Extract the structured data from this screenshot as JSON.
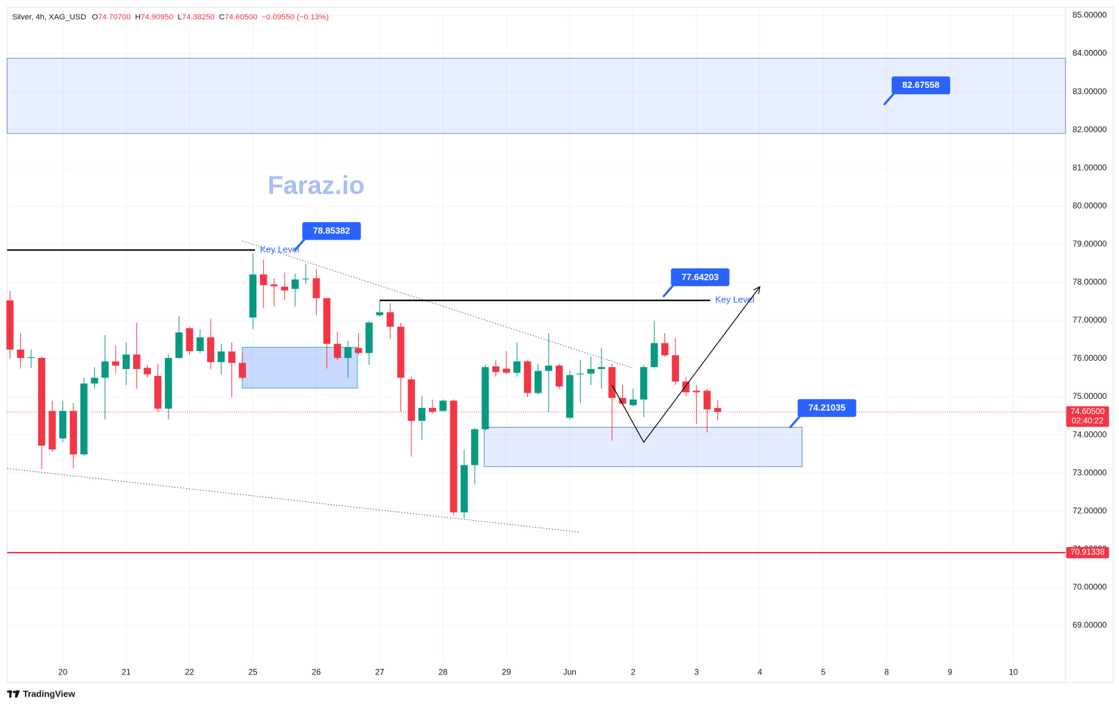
{
  "header": {
    "symbol": "Silver, 4h, XAG_USD",
    "ohlc": [
      {
        "key": "O",
        "value": "74.70700"
      },
      {
        "key": "H",
        "value": "74.90950"
      },
      {
        "key": "L",
        "value": "74.38250"
      },
      {
        "key": "C",
        "value": "74.60500"
      }
    ],
    "change": "−0.09550 (−0.13%)"
  },
  "watermark": "Faraz.io",
  "footer": "TradingView",
  "chart_data": {
    "type": "candlestick",
    "up_color": "#089981",
    "down_color": "#f23645",
    "candles": [
      [
        77.53,
        77.78,
        76.0,
        76.24
      ],
      [
        76.24,
        76.67,
        75.74,
        76.02
      ],
      [
        76.02,
        76.24,
        75.76,
        76.04
      ],
      [
        76.02,
        76.06,
        73.1,
        73.72
      ],
      [
        74.63,
        74.9,
        73.56,
        73.62
      ],
      [
        73.91,
        74.9,
        73.81,
        74.63
      ],
      [
        74.63,
        74.84,
        73.12,
        73.49
      ],
      [
        73.49,
        75.5,
        73.45,
        75.35
      ],
      [
        75.35,
        75.78,
        75.21,
        75.5
      ],
      [
        75.5,
        76.62,
        74.41,
        75.93
      ],
      [
        75.93,
        76.35,
        75.62,
        75.82
      ],
      [
        75.73,
        76.43,
        75.31,
        76.11
      ],
      [
        76.11,
        76.95,
        75.21,
        75.73
      ],
      [
        75.76,
        75.84,
        75.5,
        75.59
      ],
      [
        75.55,
        75.87,
        74.61,
        74.69
      ],
      [
        74.69,
        76.11,
        74.41,
        76.02
      ],
      [
        76.02,
        77.12,
        76.0,
        76.69
      ],
      [
        76.8,
        76.84,
        76.11,
        76.2
      ],
      [
        76.2,
        76.77,
        76.15,
        76.56
      ],
      [
        76.56,
        77.05,
        75.73,
        75.91
      ],
      [
        75.91,
        76.39,
        75.59,
        76.19
      ],
      [
        76.19,
        76.43,
        74.99,
        75.89
      ],
      [
        75.89,
        76.15,
        75.46,
        75.5
      ],
      [
        77.08,
        78.77,
        76.77,
        78.21
      ],
      [
        78.21,
        78.6,
        77.33,
        77.93
      ],
      [
        77.95,
        78.11,
        77.37,
        77.9
      ],
      [
        77.89,
        78.26,
        77.55,
        77.79
      ],
      [
        77.83,
        78.23,
        77.37,
        78.08
      ],
      [
        78.08,
        78.49,
        77.96,
        78.1
      ],
      [
        78.11,
        78.34,
        77.14,
        77.59
      ],
      [
        77.59,
        77.59,
        75.74,
        76.39
      ],
      [
        76.39,
        76.71,
        75.96,
        76.02
      ],
      [
        76.02,
        76.47,
        75.5,
        76.3
      ],
      [
        76.28,
        76.67,
        76.11,
        76.15
      ],
      [
        76.15,
        76.99,
        75.84,
        76.95
      ],
      [
        77.14,
        77.52,
        77.1,
        77.22
      ],
      [
        77.22,
        77.46,
        76.52,
        76.84
      ],
      [
        76.84,
        76.95,
        74.61,
        75.5
      ],
      [
        75.46,
        75.53,
        73.43,
        74.37
      ],
      [
        74.37,
        75.03,
        73.86,
        74.71
      ],
      [
        74.71,
        74.93,
        74.56,
        74.61
      ],
      [
        74.63,
        74.93,
        74.65,
        74.9
      ],
      [
        74.9,
        74.93,
        71.9,
        71.97
      ],
      [
        71.97,
        73.62,
        71.82,
        73.21
      ],
      [
        73.21,
        74.18,
        72.7,
        74.15
      ],
      [
        74.15,
        75.84,
        74.11,
        75.78
      ],
      [
        75.8,
        75.96,
        75.53,
        75.65
      ],
      [
        75.74,
        76.2,
        75.59,
        75.63
      ],
      [
        75.63,
        76.43,
        75.53,
        75.93
      ],
      [
        75.93,
        75.96,
        74.99,
        75.1
      ],
      [
        75.1,
        75.87,
        75.06,
        75.68
      ],
      [
        75.68,
        76.67,
        74.6,
        75.82
      ],
      [
        75.82,
        75.87,
        75.21,
        75.27
      ],
      [
        74.45,
        75.68,
        74.41,
        75.57
      ],
      [
        75.59,
        75.96,
        74.84,
        75.61
      ],
      [
        75.61,
        76.06,
        75.31,
        75.73
      ],
      [
        75.73,
        76.28,
        75.21,
        75.78
      ],
      [
        75.78,
        75.87,
        73.85,
        74.97
      ],
      [
        74.97,
        75.31,
        74.78,
        74.82
      ],
      [
        74.78,
        75.21,
        74.75,
        74.93
      ],
      [
        74.93,
        75.84,
        74.47,
        75.78
      ],
      [
        75.78,
        76.99,
        75.74,
        76.41
      ],
      [
        76.41,
        76.67,
        76.06,
        76.09
      ],
      [
        76.09,
        76.54,
        75.31,
        75.4
      ],
      [
        75.4,
        75.53,
        75.03,
        75.12
      ],
      [
        75.16,
        75.31,
        74.28,
        75.12
      ],
      [
        75.16,
        75.21,
        74.07,
        74.67
      ],
      [
        74.707,
        74.9095,
        74.3825,
        74.605
      ]
    ],
    "ylim": [
      67.54,
      85.22
    ],
    "yticks": [
      {
        "value": 85,
        "label": "85.00000"
      },
      {
        "value": 84,
        "label": "84.00000"
      },
      {
        "value": 83,
        "label": "83.00000"
      },
      {
        "value": 82,
        "label": "82.00000"
      },
      {
        "value": 81,
        "label": "81.00000"
      },
      {
        "value": 80,
        "label": "80.00000"
      },
      {
        "value": 79,
        "label": "79.00000"
      },
      {
        "value": 78,
        "label": "78.00000"
      },
      {
        "value": 77,
        "label": "77.00000"
      },
      {
        "value": 76,
        "label": "76.00000"
      },
      {
        "value": 75,
        "label": "75.00000"
      },
      {
        "value": 74,
        "label": "74.00000"
      },
      {
        "value": 73,
        "label": "73.00000"
      },
      {
        "value": 72,
        "label": "72.00000"
      },
      {
        "value": 71,
        "label": "71.00000"
      },
      {
        "value": 70,
        "label": "70.00000"
      },
      {
        "value": 69,
        "label": "69.00000"
      }
    ],
    "x_labels": [
      {
        "bar": 5,
        "label": "20"
      },
      {
        "bar": 11,
        "label": "21"
      },
      {
        "bar": 17,
        "label": "22"
      },
      {
        "bar": 23,
        "label": "25"
      },
      {
        "bar": 29,
        "label": "26"
      },
      {
        "bar": 35,
        "label": "27"
      },
      {
        "bar": 41,
        "label": "28"
      },
      {
        "bar": 47,
        "label": "29"
      },
      {
        "bar": 53,
        "label": "Jun"
      },
      {
        "bar": 59,
        "label": "2"
      },
      {
        "bar": 65,
        "label": "3"
      },
      {
        "bar": 71,
        "label": "4"
      },
      {
        "bar": 77,
        "label": "5"
      },
      {
        "bar": 83,
        "label": "8"
      },
      {
        "bar": 89,
        "label": "9"
      },
      {
        "bar": 95,
        "label": "10"
      }
    ],
    "grid": true,
    "last_price": {
      "value": 74.605,
      "label": "74.60500",
      "countdown": "02:40:22",
      "color": "#f23645"
    },
    "level_line": {
      "price": 70.91338,
      "color": "#f23645"
    },
    "zones": [
      {
        "from": -0.3,
        "to": 100,
        "top": 83.88,
        "bottom": 81.91,
        "fill": "rgba(41,98,255,0.10)",
        "stroke": "#6f8fd0"
      },
      {
        "from": 22,
        "to": 32.9,
        "top": 76.3,
        "bottom": 75.23,
        "fill": "rgba(41,98,255,0.25)",
        "stroke": "#36b3c2"
      },
      {
        "from": 44.9,
        "to": 75,
        "top": 74.2,
        "bottom": 73.17,
        "fill": "rgba(41,98,255,0.12)",
        "stroke": "#5b87c6"
      }
    ],
    "key_levels": [
      {
        "price": 78.85,
        "from": -0.3,
        "to": 23.2,
        "text": "Key Level"
      },
      {
        "price": 77.53,
        "from": 35,
        "to": 66.3,
        "text": "Key Level"
      }
    ],
    "trendlines": [
      {
        "from": [
          22,
          79.09
        ],
        "to": [
          58.9,
          75.76
        ]
      },
      {
        "from": [
          -0.3,
          73.12
        ],
        "to": [
          53.9,
          71.45
        ]
      }
    ],
    "path": [
      [
        57,
        75.31
      ],
      [
        60,
        73.81
      ],
      [
        71,
        77.89
      ]
    ],
    "callouts": [
      {
        "bar": 82.8,
        "price": 82.67558
      },
      {
        "bar": 27,
        "price": 78.85382
      },
      {
        "bar": 61.9,
        "price": 77.64203
      },
      {
        "bar": 73.9,
        "price": 74.21035
      }
    ],
    "callout_color": "#2962ff"
  }
}
